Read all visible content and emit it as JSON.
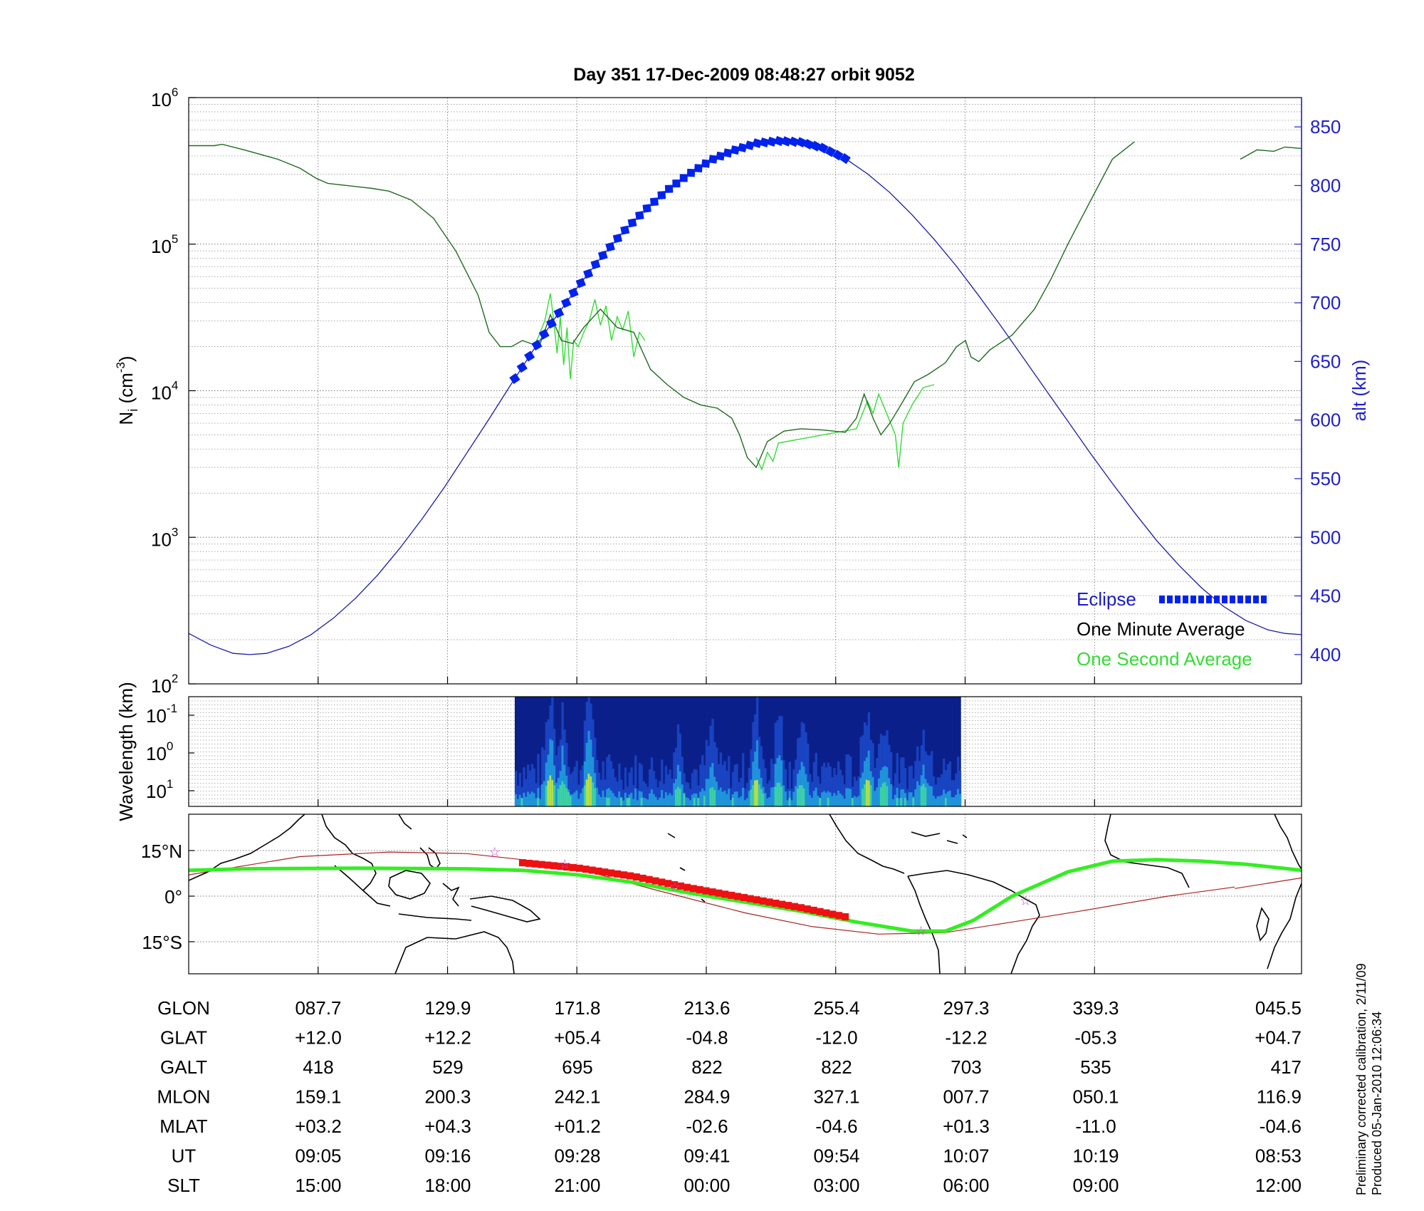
{
  "title": "Day 351  17-Dec-2009 08:48:27   orbit 9052",
  "footnote": {
    "line1": "Preliminary corrected calibration, 2/11/09",
    "line2": "Produced 05-Jan-2010 12:06:34"
  },
  "chart_data": [
    {
      "id": "ion-density",
      "type": "line",
      "ylabel_left": "N",
      "ylabel_left_sub": "i",
      "ylabel_left_units": "(cm",
      "ylabel_left_exp": "-3",
      "ylabel_left_close": ")",
      "ylabel_right": "alt (km)",
      "ylim_left": [
        100,
        1000000
      ],
      "yscale_left": "log",
      "yticks_left": [
        {
          "base": "10",
          "exp": "2",
          "value": 100
        },
        {
          "base": "10",
          "exp": "3",
          "value": 1000
        },
        {
          "base": "10",
          "exp": "4",
          "value": 10000
        },
        {
          "base": "10",
          "exp": "5",
          "value": 100000
        },
        {
          "base": "10",
          "exp": "6",
          "value": 1000000
        }
      ],
      "ylim_right": [
        375,
        875
      ],
      "yticks_right": [
        400,
        450,
        500,
        550,
        600,
        650,
        700,
        750,
        800,
        850
      ],
      "xlim": [
        0,
        1
      ],
      "xticks": [
        0.1163,
        0.2326,
        0.3488,
        0.4651,
        0.5814,
        0.6977,
        0.814
      ],
      "grid": true,
      "legend_position": "bottom-right",
      "colors": {
        "one_minute": "#1f6b1f",
        "one_second": "#33dd33",
        "altitude": "#1a1aaa",
        "eclipse": "#0022ee",
        "axis_right": "#2020cc"
      },
      "legend": {
        "eclipse": "Eclipse",
        "one_minute": "One Minute Average",
        "one_second": "One Second Average"
      },
      "series": [
        {
          "name": "One Minute Average",
          "x": [
            0.0,
            0.023,
            0.03,
            0.05,
            0.08,
            0.1,
            0.115,
            0.125,
            0.145,
            0.165,
            0.18,
            0.2,
            0.22,
            0.24,
            0.26,
            0.27,
            0.28,
            0.29,
            0.3,
            0.315,
            0.325,
            0.335,
            0.345,
            0.355,
            0.37,
            0.385,
            0.4,
            0.415,
            0.43,
            0.445,
            0.46,
            0.475,
            0.488,
            0.495,
            0.502,
            0.51,
            0.52,
            0.535,
            0.55,
            0.57,
            0.59,
            0.6,
            0.607,
            0.615,
            0.622,
            0.63,
            0.64,
            0.652,
            0.665,
            0.68,
            0.69,
            0.698,
            0.703,
            0.71,
            0.72,
            0.74,
            0.76,
            0.775,
            0.79,
            0.8,
            0.83,
            0.85
          ],
          "y": [
            470000,
            470000,
            480000,
            440000,
            380000,
            330000,
            280000,
            260000,
            250000,
            240000,
            230000,
            200000,
            150000,
            90000,
            45000,
            25000,
            20000,
            20000,
            22000,
            20000,
            33000,
            22000,
            21000,
            27000,
            36000,
            27000,
            25000,
            14000,
            11000,
            9000,
            8000,
            7600,
            6500,
            5000,
            3500,
            3000,
            4500,
            5300,
            5500,
            5400,
            5200,
            6500,
            9500,
            6500,
            5000,
            6000,
            8000,
            11500,
            13000,
            15500,
            20000,
            22000,
            17000,
            15800,
            19000,
            24000,
            36000,
            58000,
            100000,
            140000,
            380000,
            500000
          ]
        },
        {
          "name": "One Minute Average (end)",
          "x": [
            0.945,
            0.96,
            0.975,
            0.985,
            1.0
          ],
          "y": [
            380000,
            440000,
            430000,
            460000,
            450000
          ]
        },
        {
          "name": "One Second Average",
          "x": [
            0.31,
            0.315,
            0.32,
            0.325,
            0.328,
            0.331,
            0.334,
            0.337,
            0.34,
            0.343,
            0.346,
            0.35,
            0.355,
            0.36,
            0.365,
            0.37,
            0.375,
            0.38,
            0.385,
            0.39,
            0.395,
            0.4,
            0.405,
            0.41
          ],
          "y": [
            20000,
            24000,
            30000,
            46000,
            30000,
            18000,
            32000,
            15000,
            27000,
            12000,
            22000,
            20000,
            25000,
            30000,
            42000,
            28000,
            38000,
            22000,
            32000,
            26000,
            35000,
            17000,
            25000,
            22000
          ]
        },
        {
          "name": "One Second Average (2)",
          "x": [
            0.51,
            0.515,
            0.52,
            0.525,
            0.53,
            0.6,
            0.61,
            0.615,
            0.62,
            0.63,
            0.635,
            0.638,
            0.642,
            0.65,
            0.66,
            0.67
          ],
          "y": [
            3500,
            2900,
            3800,
            3300,
            4400,
            5500,
            8500,
            7000,
            9500,
            6200,
            5000,
            3000,
            6000,
            8000,
            10500,
            11000
          ]
        },
        {
          "name": "alt (km)",
          "axis": "right",
          "x": [
            0.0,
            0.02,
            0.04,
            0.055,
            0.07,
            0.09,
            0.11,
            0.13,
            0.15,
            0.17,
            0.19,
            0.21,
            0.23,
            0.25,
            0.27,
            0.29,
            0.31,
            0.33,
            0.35,
            0.37,
            0.39,
            0.41,
            0.43,
            0.45,
            0.47,
            0.49,
            0.51,
            0.53,
            0.55,
            0.57,
            0.59,
            0.61,
            0.63,
            0.65,
            0.67,
            0.69,
            0.71,
            0.73,
            0.75,
            0.77,
            0.79,
            0.81,
            0.83,
            0.85,
            0.87,
            0.89,
            0.91,
            0.93,
            0.95,
            0.97,
            0.985,
            1.0
          ],
          "y": [
            418,
            408,
            401,
            400,
            401,
            407,
            417,
            431,
            448,
            468,
            491,
            516,
            543,
            572,
            601,
            631,
            660,
            688,
            714,
            738,
            760,
            779,
            796,
            810,
            822,
            830,
            836,
            838,
            837,
            832,
            823,
            810,
            794,
            775,
            754,
            731,
            706,
            680,
            653,
            626,
            599,
            572,
            546,
            521,
            497,
            476,
            457,
            441,
            429,
            421,
            418,
            417
          ]
        },
        {
          "name": "Eclipse",
          "axis": "right",
          "x_range": [
            0.293,
            0.59
          ]
        }
      ],
      "legend_eclipse_sample": true
    },
    {
      "id": "wavelength-spectrogram",
      "type": "heatmap",
      "ylabel": "Wavelength (km)",
      "yscale": "log",
      "yticks": [
        {
          "base": "10",
          "exp": "-1"
        },
        {
          "base": "10",
          "exp": "0"
        },
        {
          "base": "10",
          "exp": "1"
        }
      ],
      "x_range": [
        0.293,
        0.694
      ],
      "colormap": "jet",
      "bursts": [
        {
          "x": 0.325,
          "strength": 0.8
        },
        {
          "x": 0.336,
          "strength": 0.6
        },
        {
          "x": 0.36,
          "strength": 0.9
        },
        {
          "x": 0.44,
          "strength": 0.4
        },
        {
          "x": 0.47,
          "strength": 0.4
        },
        {
          "x": 0.51,
          "strength": 0.7
        },
        {
          "x": 0.53,
          "strength": 0.6
        },
        {
          "x": 0.55,
          "strength": 0.5
        },
        {
          "x": 0.61,
          "strength": 0.7
        },
        {
          "x": 0.625,
          "strength": 0.6
        },
        {
          "x": 0.66,
          "strength": 0.5
        }
      ]
    },
    {
      "id": "ground-track-map",
      "type": "line",
      "yticks": [
        "15°N",
        "0°",
        "15°S"
      ],
      "colors": {
        "track": "#33ee22",
        "eclipse": "#ee1111",
        "magnetic": "#aa2222",
        "stars": "#cc44cc"
      },
      "series": [
        {
          "name": "ground track",
          "x": [
            0.0,
            0.05,
            0.15,
            0.25,
            0.3,
            0.35,
            0.4,
            0.45,
            0.5,
            0.55,
            0.6,
            0.65,
            0.68,
            0.705,
            0.74,
            0.79,
            0.83,
            0.87,
            0.91,
            0.95,
            1.0
          ],
          "lat": [
            8.5,
            9.0,
            9.2,
            9.0,
            8.5,
            7.0,
            4.5,
            1.0,
            -2.0,
            -5.0,
            -8.5,
            -11.5,
            -11.5,
            -8.0,
            0.0,
            8.0,
            11.5,
            12.0,
            11.5,
            10.5,
            8.5
          ]
        },
        {
          "name": "magnetic equator",
          "x": [
            0.0,
            0.1,
            0.18,
            0.25,
            0.3,
            0.36,
            0.42,
            0.5,
            0.56,
            0.62,
            0.68,
            0.74,
            0.8,
            0.88,
            0.94
          ],
          "lat": [
            7.0,
            13.0,
            14.5,
            14.0,
            12.0,
            8.0,
            2.0,
            -5.5,
            -10.0,
            -12.5,
            -12.0,
            -8.5,
            -5.0,
            0.0,
            3.0
          ]
        },
        {
          "name": "magnetic equator (end)",
          "x": [
            0.94,
            1.0
          ],
          "lat": [
            2.5,
            6.0
          ]
        },
        {
          "name": "eclipse track",
          "x_range": [
            0.3,
            0.59
          ]
        }
      ],
      "stars": [
        {
          "x": 0.275,
          "lat": 14.5
        },
        {
          "x": 0.338,
          "lat": 10.5
        },
        {
          "x": 0.437,
          "lat": 3.0
        },
        {
          "x": 0.658,
          "lat": -11.5
        },
        {
          "x": 0.752,
          "lat": -1.5
        }
      ]
    }
  ],
  "info_table": {
    "rows": [
      {
        "label": "GLON",
        "values": [
          "087.7",
          "129.9",
          "171.8",
          "213.6",
          "255.4",
          "297.3",
          "339.3",
          "045.5"
        ]
      },
      {
        "label": "GLAT",
        "values": [
          "+12.0",
          "+12.2",
          "+05.4",
          "-04.8",
          "-12.0",
          "-12.2",
          "-05.3",
          "+04.7"
        ]
      },
      {
        "label": "GALT",
        "values": [
          "418",
          "529",
          "695",
          "822",
          "822",
          "703",
          "535",
          "417"
        ]
      },
      {
        "label": "MLON",
        "values": [
          "159.1",
          "200.3",
          "242.1",
          "284.9",
          "327.1",
          "007.7",
          "050.1",
          "116.9"
        ]
      },
      {
        "label": "MLAT",
        "values": [
          "+03.2",
          "+04.3",
          "+01.2",
          "-02.6",
          "-04.6",
          "+01.3",
          "-11.0",
          "-04.6"
        ]
      },
      {
        "label": "UT",
        "values": [
          "09:05",
          "09:16",
          "09:28",
          "09:41",
          "09:54",
          "10:07",
          "10:19",
          "08:53"
        ]
      },
      {
        "label": "SLT",
        "values": [
          "15:00",
          "18:00",
          "21:00",
          "00:00",
          "03:00",
          "06:00",
          "09:00",
          "12:00"
        ]
      }
    ]
  }
}
